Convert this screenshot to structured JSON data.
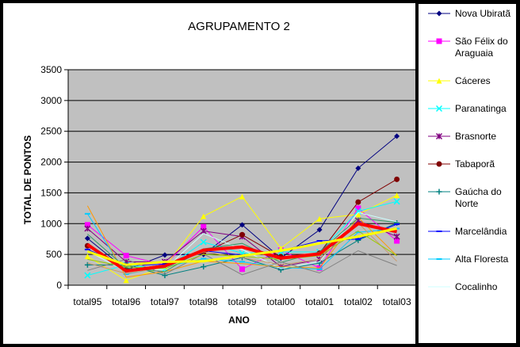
{
  "chart_data": {
    "type": "line",
    "title": "AGRUPAMENTO 2",
    "xlabel": "ANO",
    "ylabel": "TOTAL DE PONTOS",
    "categories": [
      "total95",
      "total96",
      "total97",
      "total98",
      "total99",
      "total00",
      "total01",
      "total02",
      "total03"
    ],
    "ylim": [
      0,
      3500
    ],
    "yticks": [
      "0",
      "500",
      "1000",
      "1500",
      "2000",
      "2500",
      "3000",
      "3500"
    ],
    "grid": "horizontal",
    "legend_position": "right",
    "plot_background": "#c0c0c0",
    "series": [
      {
        "name": "Nova Ubiratã",
        "color": "#000080",
        "marker": "diamond",
        "values": [
          760,
          250,
          490,
          500,
          980,
          440,
          900,
          1900,
          2420
        ]
      },
      {
        "name": "São Félix do Araguaia",
        "color": "#ff00ff",
        "marker": "square",
        "values": [
          980,
          480,
          330,
          950,
          260,
          570,
          280,
          1250,
          720
        ]
      },
      {
        "name": "Cáceres",
        "color": "#ffff00",
        "marker": "triangle",
        "values": [
          470,
          80,
          300,
          1120,
          1440,
          600,
          1080,
          1150,
          1460
        ]
      },
      {
        "name": "Paranatinga",
        "color": "#00ffff",
        "marker": "x",
        "values": [
          160,
          330,
          260,
          700,
          520,
          540,
          540,
          1200,
          1360
        ]
      },
      {
        "name": "Brasnorte",
        "color": "#800080",
        "marker": "star",
        "values": [
          920,
          380,
          380,
          880,
          790,
          300,
          420,
          1050,
          790
        ]
      },
      {
        "name": "Tabaporã",
        "color": "#800000",
        "marker": "circle",
        "values": [
          640,
          250,
          330,
          530,
          820,
          460,
          520,
          1350,
          1720
        ]
      },
      {
        "name": "Gaúcha do Norte",
        "color": "#008080",
        "marker": "plus",
        "values": [
          330,
          330,
          160,
          300,
          450,
          250,
          360,
          730,
          1010
        ]
      },
      {
        "name": "Marcelândia",
        "color": "#0000ff",
        "marker": "dash",
        "values": [
          580,
          320,
          340,
          560,
          490,
          560,
          720,
          750,
          990
        ]
      },
      {
        "name": "Alta Floresta",
        "color": "#00ccff",
        "marker": "dash",
        "values": [
          1160,
          180,
          300,
          430,
          380,
          290,
          260,
          860,
          920
        ]
      },
      {
        "name": "Cocalinho",
        "color": "#ccffff",
        "marker": "none",
        "values": [
          560,
          220,
          260,
          840,
          580,
          270,
          380,
          1180,
          1030
        ]
      },
      {
        "name": "",
        "color": "#ff9900",
        "marker": "none",
        "values": [
          1290,
          130,
          220,
          390,
          350,
          300,
          280,
          1100,
          480
        ]
      },
      {
        "name": "",
        "color": "#cc9966",
        "marker": "none",
        "values": [
          360,
          190,
          290,
          540,
          450,
          330,
          420,
          1010,
          390
        ]
      },
      {
        "name": "",
        "color": "#339966",
        "marker": "none",
        "values": [
          830,
          280,
          220,
          590,
          680,
          370,
          540,
          1090,
          1020
        ]
      },
      {
        "name": "",
        "color": "#808080",
        "marker": "none",
        "values": [
          240,
          420,
          180,
          510,
          170,
          380,
          200,
          560,
          320
        ]
      },
      {
        "name": "",
        "color": "#99cc00",
        "marker": "none",
        "values": [
          420,
          300,
          270,
          500,
          470,
          420,
          480,
          880,
          480
        ]
      },
      {
        "name": "",
        "color": "#ff0000",
        "marker": "none",
        "width": 4,
        "values": [
          660,
          230,
          310,
          570,
          620,
          440,
          510,
          1000,
          870
        ]
      },
      {
        "name": "",
        "color": "#ffff00",
        "marker": "none",
        "width": 3,
        "values": [
          550,
          330,
          380,
          390,
          480,
          560,
          680,
          790,
          920
        ]
      }
    ]
  }
}
